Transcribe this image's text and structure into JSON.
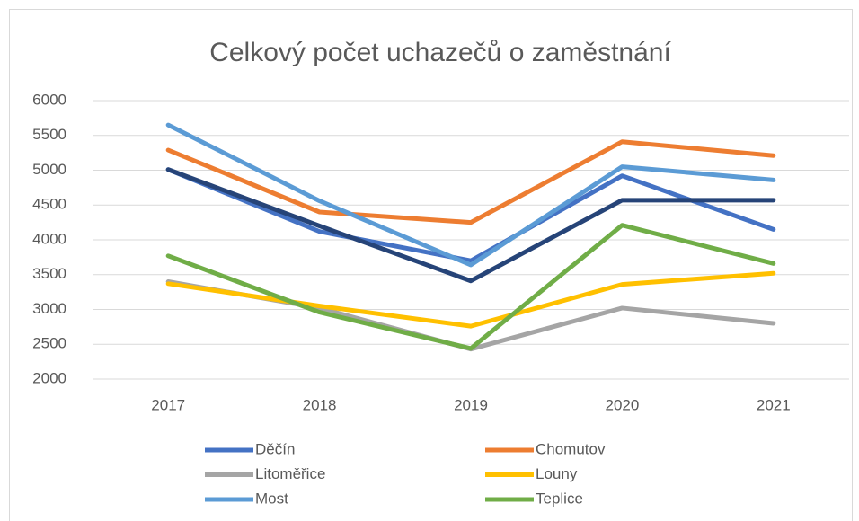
{
  "chart_data": {
    "type": "line",
    "title": "Celkový počet uchazečů o zaměstnání",
    "categories": [
      "2017",
      "2018",
      "2019",
      "2020",
      "2021"
    ],
    "series": [
      {
        "name": "Děčín",
        "color": "#4472c4",
        "values": [
          5010,
          4120,
          3700,
          4920,
          4150
        ]
      },
      {
        "name": "Chomutov",
        "color": "#ed7d31",
        "values": [
          5290,
          4400,
          4250,
          5410,
          5210
        ]
      },
      {
        "name": "Litoměřice",
        "color": "#a5a5a5",
        "values": [
          3400,
          3020,
          2430,
          3020,
          2800
        ]
      },
      {
        "name": "Louny",
        "color": "#ffc000",
        "values": [
          3370,
          3050,
          2760,
          3360,
          3520
        ]
      },
      {
        "name": "Most",
        "color": "#5b9bd5",
        "values": [
          5650,
          4560,
          3640,
          5050,
          4860
        ]
      },
      {
        "name": "Teplice",
        "color": "#70ad47",
        "values": [
          3770,
          2960,
          2440,
          4210,
          3660
        ]
      },
      {
        "color": "#264478",
        "values": [
          5010,
          4200,
          3410,
          4570,
          4570
        ]
      }
    ],
    "ylim": [
      2000,
      6000
    ],
    "yticks": [
      2000,
      2500,
      3000,
      3500,
      4000,
      4500,
      5000,
      5500,
      6000
    ],
    "grid": true
  }
}
